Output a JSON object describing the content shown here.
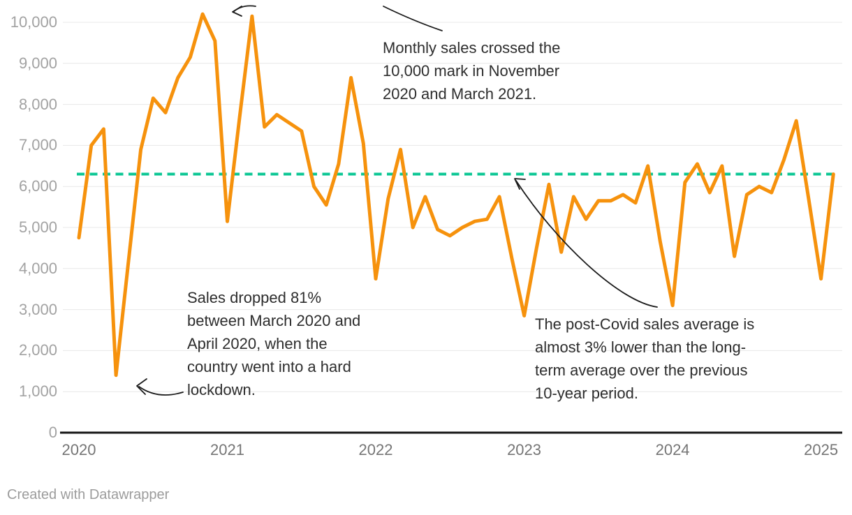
{
  "chart_data": {
    "type": "line",
    "title": "",
    "x_unit": "month",
    "x_start": "2020-01",
    "x_end": "2025-02",
    "x_tick_labels": [
      "2020",
      "2021",
      "2022",
      "2023",
      "2024",
      "2025"
    ],
    "y_ticks": [
      0,
      1000,
      2000,
      3000,
      4000,
      5000,
      6000,
      7000,
      8000,
      9000,
      10000
    ],
    "y_tick_labels": [
      "0",
      "1,000",
      "2,000",
      "3,000",
      "4,000",
      "5,000",
      "6,000",
      "7,000",
      "8,000",
      "9,000",
      "10,000"
    ],
    "ylim": [
      0,
      10400
    ],
    "grid": "horizontal",
    "series": [
      {
        "name": "Monthly sales",
        "color": "#F6920D",
        "values": [
          4750,
          7000,
          7400,
          1400,
          4150,
          6900,
          8150,
          7800,
          8650,
          9150,
          10200,
          9550,
          5150,
          7700,
          10150,
          7450,
          7750,
          7550,
          7350,
          6000,
          5550,
          6550,
          8650,
          7050,
          3750,
          5700,
          6900,
          5000,
          5750,
          4950,
          4800,
          5000,
          5150,
          5200,
          5750,
          4250,
          2850,
          4500,
          6050,
          4400,
          5750,
          5200,
          5650,
          5650,
          5800,
          5600,
          6500,
          4650,
          3100,
          6100,
          6550,
          5850,
          6500,
          4300,
          5800,
          6000,
          5850,
          6650,
          7600,
          5700,
          3750,
          6300
        ]
      }
    ],
    "reference_line": {
      "value": 6300,
      "style": "dashed",
      "color": "#0EC795",
      "meaning": "long-term average"
    }
  },
  "annotations": {
    "peaks": {
      "lines": [
        "Monthly sales crossed the",
        "10,000 mark in November",
        "2020 and March 2021."
      ]
    },
    "lockdown": {
      "lines": [
        "Sales dropped 81%",
        "between March 2020 and",
        "April 2020, when the",
        "country went into a hard",
        "lockdown."
      ]
    },
    "average": {
      "lines": [
        "The post-Covid sales average is",
        "almost 3% lower than the long-",
        "term average over the previous",
        "10-year period."
      ]
    }
  },
  "footer": {
    "attribution": "Created with Datawrapper"
  },
  "colors": {
    "line": "#F6920D",
    "reference": "#0EC795",
    "gridline": "#E8E8E8",
    "axis": "#161616",
    "y_label": "#A2A2A2",
    "x_label": "#757575",
    "annotation_text": "#2D2D2D"
  }
}
